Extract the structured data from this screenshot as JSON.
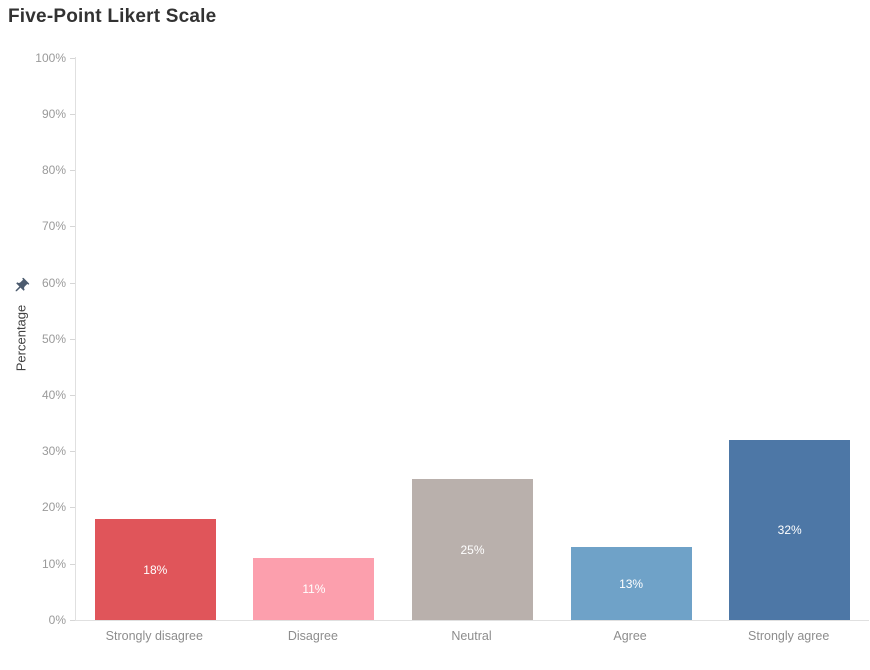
{
  "chart_data": {
    "type": "bar",
    "title": "Five-Point Likert Scale",
    "categories": [
      "Strongly disagree",
      "Disagree",
      "Neutral",
      "Agree",
      "Strongly agree"
    ],
    "values": [
      18,
      11,
      25,
      13,
      32
    ],
    "value_labels": [
      "18%",
      "11%",
      "25%",
      "13%",
      "32%"
    ],
    "bar_colors": [
      "#e0555a",
      "#fc9fad",
      "#b9b0ac",
      "#6fa2c8",
      "#4d77a6"
    ],
    "value_label_color": "#ffffff",
    "xlabel": "",
    "ylabel": "Percentage",
    "ylim": [
      0,
      100
    ],
    "y_tick_labels": [
      "0%",
      "10%",
      "20%",
      "30%",
      "40%",
      "50%",
      "60%",
      "70%",
      "80%",
      "90%",
      "100%"
    ],
    "grid": false,
    "legend": "none",
    "axis_color": "#e0e0e0"
  },
  "icons": {
    "axis_pin": "pushpin",
    "axis_pin_color": "#4c5b6e"
  }
}
